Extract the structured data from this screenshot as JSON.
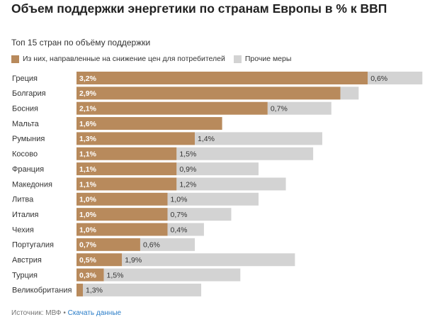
{
  "header": {
    "title": "Объем поддержки энергетики по странам Европы в % к ВВП",
    "subtitle": "Топ 15 стран по объёму поддержки"
  },
  "legend": {
    "primary_label": "Из них, направленные на снижение цен для потребителей",
    "secondary_label": "Прочие меры"
  },
  "footer": {
    "source_label": "Источник: МВФ",
    "separator": "•",
    "download_label": "Скачать данные"
  },
  "colors": {
    "primary": "#b88a5c",
    "secondary": "#d3d3d3",
    "link": "#2a7dc8"
  },
  "chart_data": {
    "type": "bar",
    "orientation": "horizontal",
    "stacked": true,
    "categories": [
      "Греция",
      "Болгария",
      "Босния",
      "Мальта",
      "Румыния",
      "Косово",
      "Франция",
      "Македония",
      "Литва",
      "Италия",
      "Чехия",
      "Португалия",
      "Австрия",
      "Турция",
      "Великобритания"
    ],
    "series": [
      {
        "name": "Из них, направленные на снижение цен для потребителей",
        "values": [
          3.2,
          2.9,
          2.1,
          1.6,
          1.3,
          1.1,
          1.1,
          1.1,
          1.0,
          1.0,
          1.0,
          0.7,
          0.5,
          0.3,
          0.07
        ],
        "labels": [
          "3,2%",
          "2,9%",
          "2,1%",
          "1,6%",
          "1,3%",
          "1,1%",
          "1,1%",
          "1,1%",
          "1,0%",
          "1,0%",
          "1,0%",
          "0,7%",
          "0,5%",
          "0,3%",
          ""
        ]
      },
      {
        "name": "Прочие меры",
        "values": [
          0.6,
          0.2,
          0.7,
          0,
          1.4,
          1.5,
          0.9,
          1.2,
          1.0,
          0.7,
          0.4,
          0.6,
          1.9,
          1.5,
          1.3
        ],
        "labels": [
          "0,6%",
          "",
          "0,7%",
          "",
          "1,4%",
          "1,5%",
          "0,9%",
          "1,2%",
          "1,0%",
          "0,7%",
          "0,4%",
          "0,6%",
          "1,9%",
          "1,5%",
          "1,3%"
        ]
      }
    ],
    "xlim": [
      0,
      3.8
    ],
    "grid": false,
    "legend_position": "top-left"
  }
}
